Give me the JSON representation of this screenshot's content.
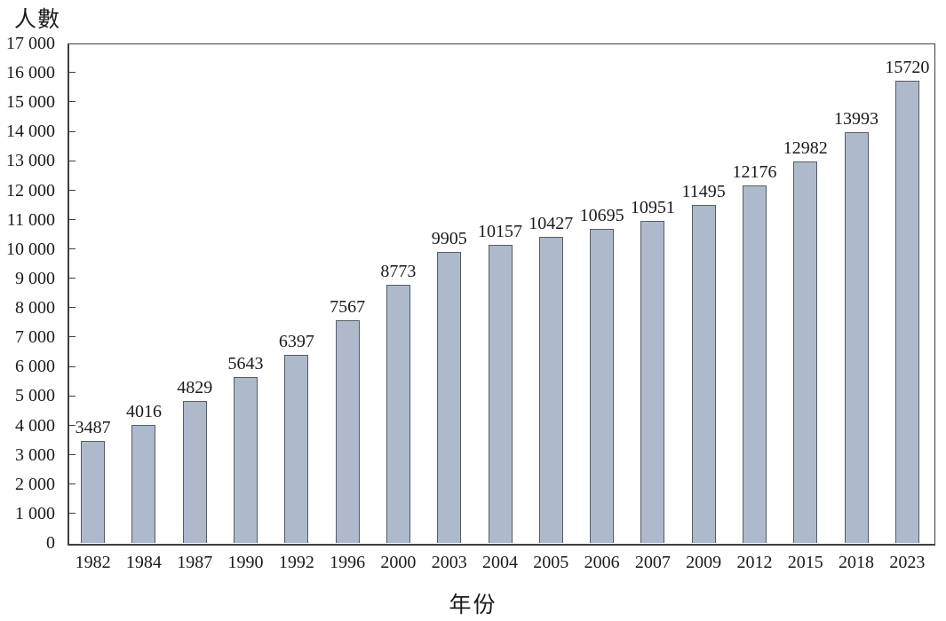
{
  "chart_data": {
    "type": "bar",
    "title": "",
    "ylabel": "人數",
    "xlabel": "年份",
    "categories": [
      "1982",
      "1984",
      "1987",
      "1990",
      "1992",
      "1996",
      "2000",
      "2003",
      "2004",
      "2005",
      "2006",
      "2007",
      "2009",
      "2012",
      "2015",
      "2018",
      "2023"
    ],
    "values": [
      3487,
      4016,
      4829,
      5643,
      6397,
      7567,
      8773,
      9905,
      10157,
      10427,
      10695,
      10951,
      11495,
      12176,
      12982,
      13993,
      15720
    ],
    "value_labels": [
      "3487",
      "4016",
      "4829",
      "5643",
      "6397",
      "7567",
      "8773",
      "9905",
      "10157",
      "10427",
      "10695",
      "10951",
      "11495",
      "12176",
      "12982",
      "13993",
      "15720"
    ],
    "ylim": [
      0,
      17000
    ],
    "ytick_step": 1000,
    "ytick_labels": [
      "0",
      "1 000",
      "2 000",
      "3 000",
      "4 000",
      "5 000",
      "6 000",
      "7 000",
      "8 000",
      "9 000",
      "10 000",
      "11 000",
      "12 000",
      "13 000",
      "14 000",
      "15 000",
      "16 000",
      "17 000"
    ],
    "grid": false,
    "legend": "none",
    "bar_fill": "#aeb9cc",
    "bar_border": "#565c66",
    "axis_color": "#3f3f3f",
    "text_color": "#1a1a1a"
  }
}
